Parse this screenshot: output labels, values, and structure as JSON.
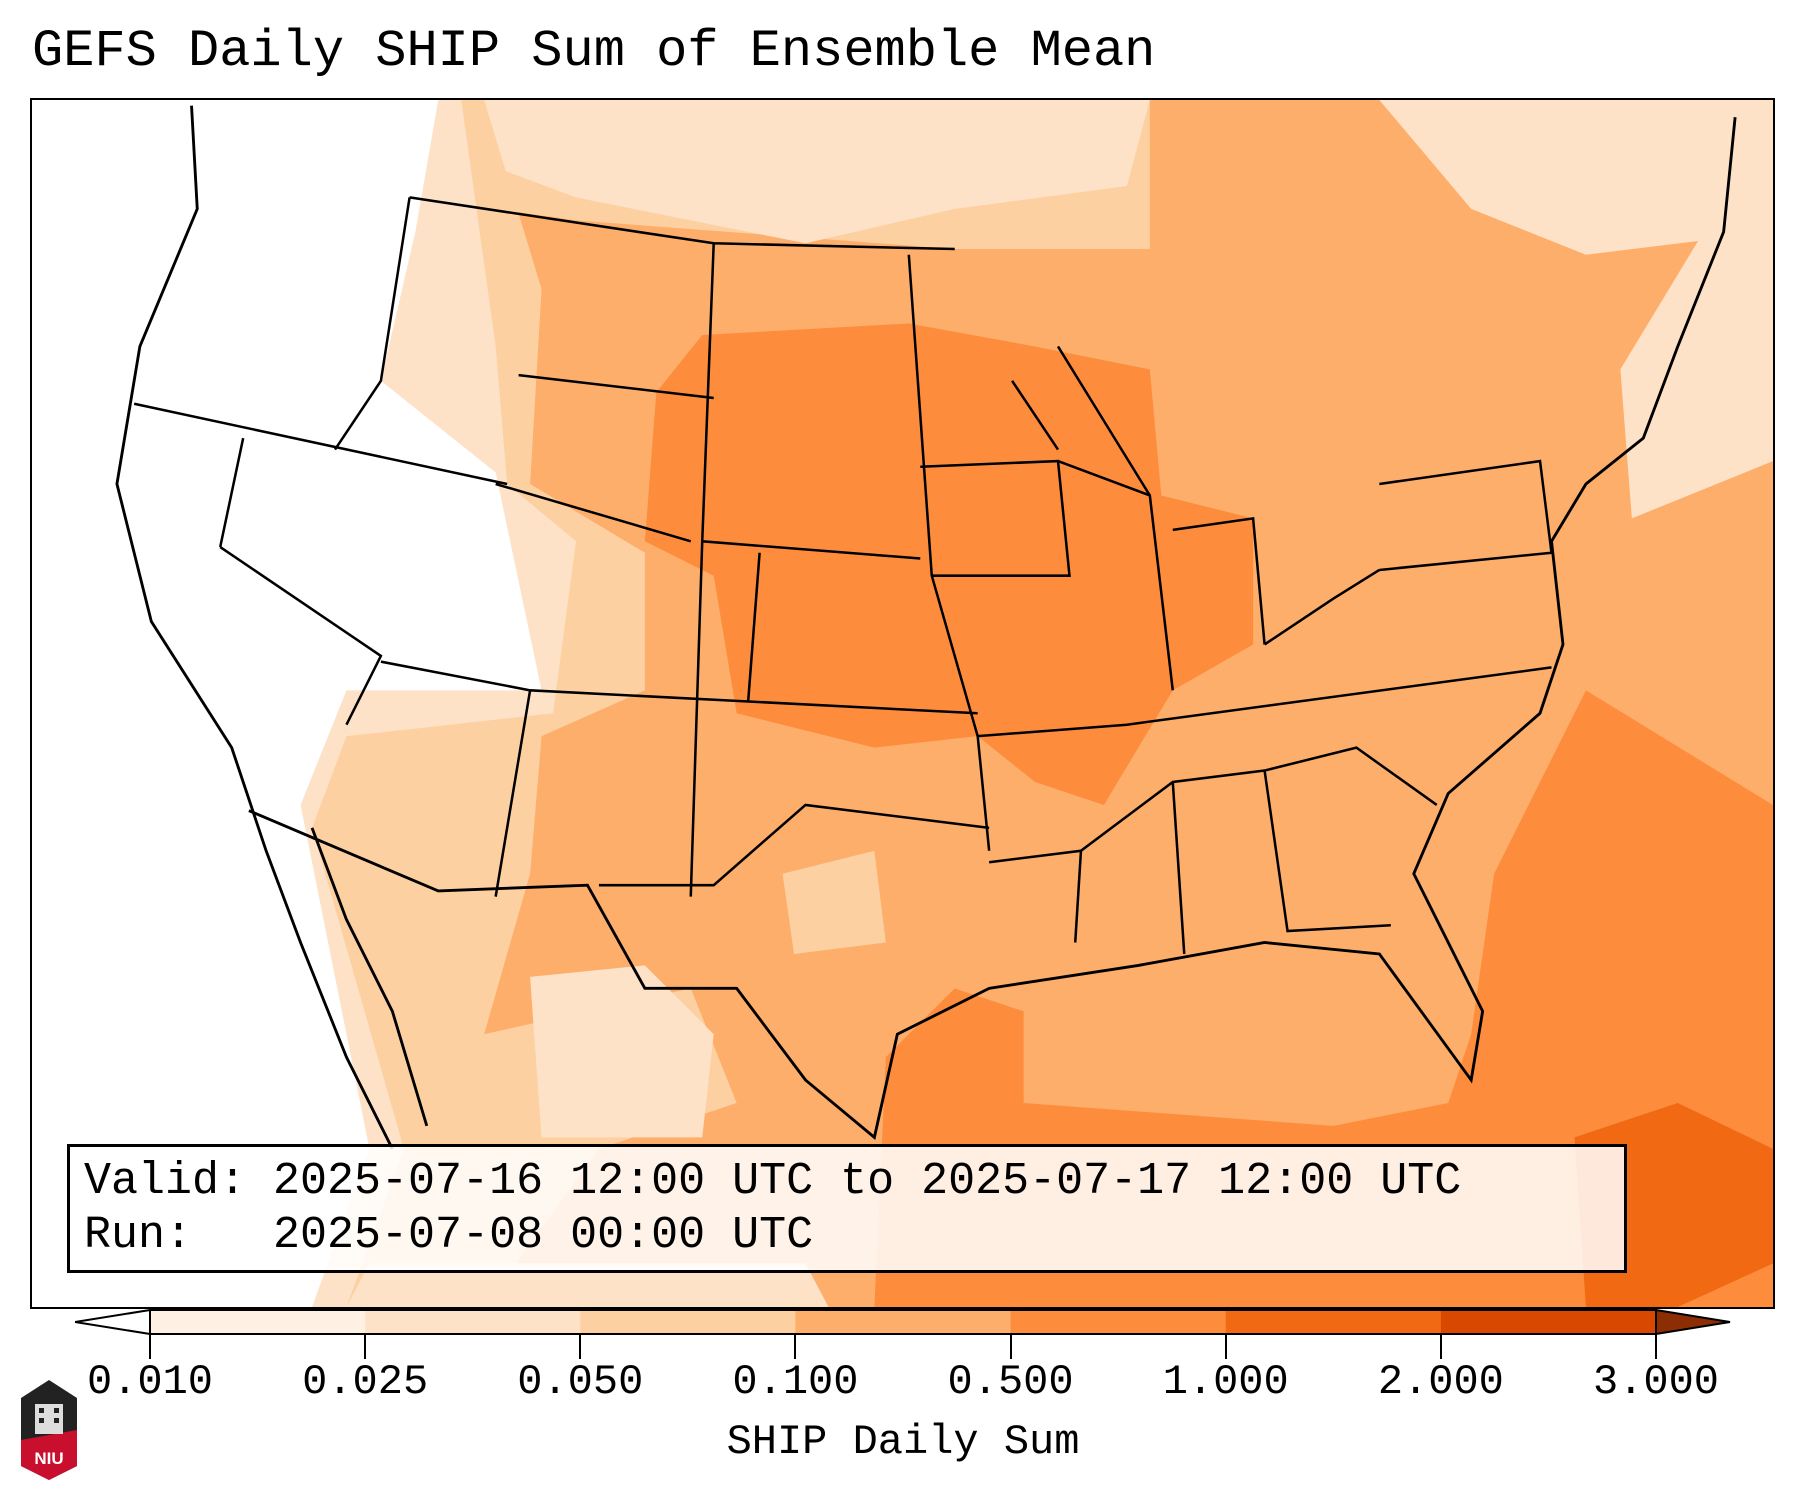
{
  "title": "GEFS Daily SHIP Sum of Ensemble Mean",
  "info_box": {
    "valid_line": "Valid: 2025-07-16 12:00 UTC to 2025-07-17 12:00 UTC",
    "run_line": "Run:   2025-07-08 00:00 UTC"
  },
  "colorbar": {
    "label": "SHIP Daily Sum",
    "ticks": [
      "0.010",
      "0.025",
      "0.050",
      "0.100",
      "0.500",
      "1.000",
      "2.000",
      "3.000"
    ],
    "colors": [
      "#fff0e4",
      "#fee2c8",
      "#fdd0a2",
      "#fdae6b",
      "#fd8d3c",
      "#f16913",
      "#d94801",
      "#8c2d04"
    ],
    "under_color": "#ffffff"
  },
  "logo": {
    "text": "NIU"
  }
}
